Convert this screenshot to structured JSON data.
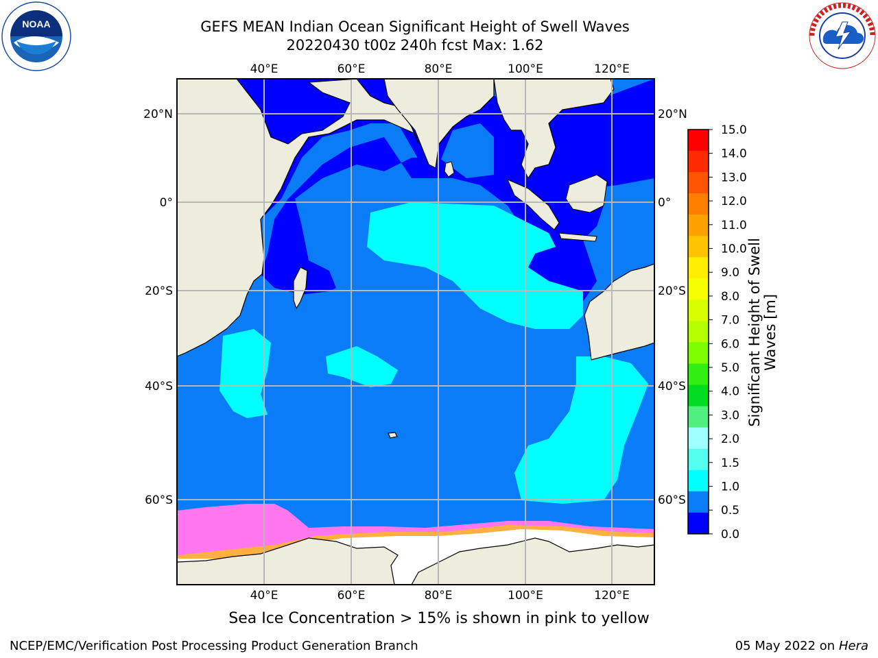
{
  "title_line1": "GEFS MEAN Indian Ocean Significant Height of Swell Waves",
  "title_line2": "20220430 t00z 240h fcst   Max: 1.62",
  "logos": {
    "noaa": {
      "text": "NOAA",
      "ring_text": "NATIONAL OCEANIC AND ATMOSPHERIC ADMINISTRATION · U.S. DEPARTMENT OF COMMERCE"
    },
    "nws": {
      "ring_text": "NATIONAL WEATHER SERVICE"
    }
  },
  "map": {
    "lon_ticks": [
      "40°E",
      "60°E",
      "80°E",
      "100°E",
      "120°E"
    ],
    "lat_ticks": [
      "20°N",
      "0°",
      "20°S",
      "40°S",
      "60°S"
    ],
    "colors": {
      "land": "#eeecdc",
      "ocean_low": "#0000ff",
      "ocean_mid": "#0a7cf7",
      "ocean_high": "#00ffff",
      "ocean_higher": "#45f5f0",
      "sea_ice_white": "#ffffff",
      "ice_pink": "#ff77ee",
      "ice_orange": "#ffb040",
      "grid": "#b8b8b8"
    }
  },
  "colorbar": {
    "label_line1": "Significant Height of Swell",
    "label_line2": "Waves [m]",
    "ticks": [
      "15.0",
      "14.0",
      "13.0",
      "12.0",
      "11.0",
      "10.0",
      "9.0",
      "8.0",
      "7.0",
      "6.0",
      "5.0",
      "4.0",
      "3.0",
      "2.0",
      "1.5",
      "1.0",
      "0.5",
      "0.0"
    ],
    "colors_top_to_bottom": [
      "#ff0000",
      "#ff2a00",
      "#ff5500",
      "#ff8000",
      "#ffa200",
      "#ffc400",
      "#ffee00",
      "#f5ff00",
      "#d7ff00",
      "#b4ff00",
      "#7dff00",
      "#32ee10",
      "#00dd20",
      "#50f080",
      "#a0ffff",
      "#55fff0",
      "#00ffff",
      "#0a7cf7",
      "#0000ff"
    ]
  },
  "footer_note": "Sea Ice Concentration > 15% is shown in pink to yellow",
  "credit": "NCEP/EMC/Verification Post Processing Product Generation Branch",
  "date_text": "05 May 2022 on",
  "date_machine": "Hera"
}
